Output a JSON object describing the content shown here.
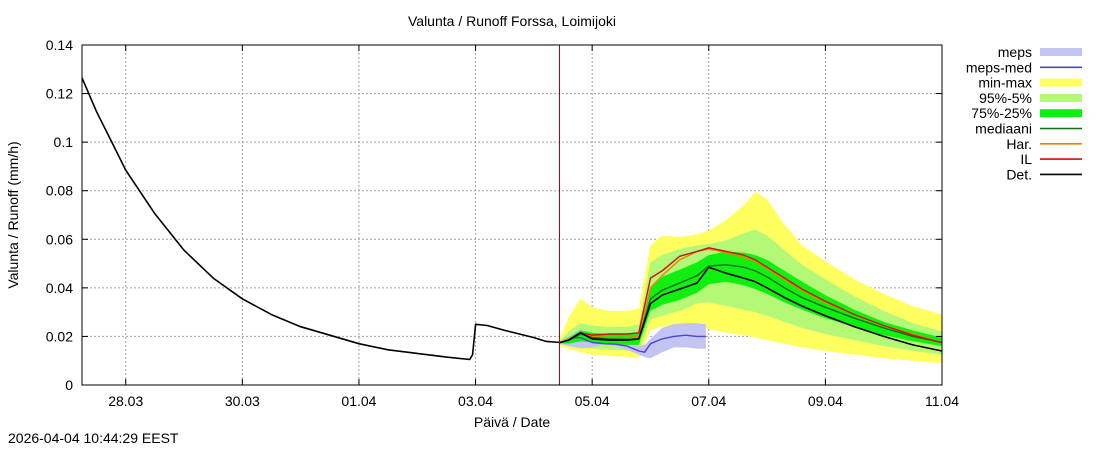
{
  "chart_data": {
    "type": "line",
    "title": "Valunta / Runoff  Forssa, Loimijoki",
    "xlabel": "Päivä / Date",
    "ylabel": "Valunta / Runoff (mm/h)",
    "xunit": "days since 27.03 00:00",
    "xlim": [
      0.25,
      15.0
    ],
    "ylim": [
      0,
      0.14
    ],
    "grid": true,
    "legend_position": "outside-right",
    "now_x": 8.44,
    "xticks": [
      {
        "x": 1,
        "label": "28.03"
      },
      {
        "x": 3,
        "label": "30.03"
      },
      {
        "x": 5,
        "label": "01.04"
      },
      {
        "x": 7,
        "label": "03.04"
      },
      {
        "x": 9,
        "label": "05.04"
      },
      {
        "x": 11,
        "label": "07.04"
      },
      {
        "x": 13,
        "label": "09.04"
      },
      {
        "x": 15,
        "label": "11.04"
      }
    ],
    "yticks": [
      {
        "y": 0,
        "label": "0"
      },
      {
        "y": 0.02,
        "label": "0.02"
      },
      {
        "y": 0.04,
        "label": "0.04"
      },
      {
        "y": 0.06,
        "label": "0.06"
      },
      {
        "y": 0.08,
        "label": "0.08"
      },
      {
        "y": 0.1,
        "label": "0.1"
      },
      {
        "y": 0.12,
        "label": "0.12"
      },
      {
        "y": 0.14,
        "label": "0.14"
      }
    ],
    "series": [
      {
        "name": "meps",
        "kind": "band",
        "color": "#c4c4f4",
        "x": [
          8.45,
          8.6,
          8.8,
          9.0,
          9.2,
          9.4,
          9.6,
          9.8,
          9.9,
          10.0,
          10.2,
          10.4,
          10.6,
          10.8,
          10.95
        ],
        "lower": [
          0.017,
          0.016,
          0.015,
          0.0155,
          0.0165,
          0.016,
          0.0145,
          0.0125,
          0.0115,
          0.011,
          0.0135,
          0.0155,
          0.0155,
          0.015,
          0.015
        ],
        "upper": [
          0.018,
          0.02,
          0.023,
          0.02,
          0.019,
          0.0185,
          0.0175,
          0.016,
          0.0165,
          0.019,
          0.0235,
          0.025,
          0.0255,
          0.0255,
          0.025
        ]
      },
      {
        "name": "meps-med",
        "kind": "line",
        "color": "#4848c8",
        "x": [
          8.45,
          8.7,
          8.8,
          9.0,
          9.2,
          9.4,
          9.6,
          9.8,
          9.9,
          10.0,
          10.2,
          10.4,
          10.6,
          10.8,
          10.95
        ],
        "y": [
          0.0175,
          0.0195,
          0.0195,
          0.0175,
          0.017,
          0.0168,
          0.016,
          0.014,
          0.0135,
          0.017,
          0.019,
          0.02,
          0.0205,
          0.02,
          0.02
        ]
      },
      {
        "name": "min-max",
        "kind": "band",
        "color": "#ffff60",
        "x": [
          8.45,
          8.6,
          8.8,
          9.0,
          9.3,
          9.6,
          9.8,
          10.0,
          10.2,
          10.5,
          10.8,
          11.0,
          11.3,
          11.6,
          11.8,
          12.0,
          12.3,
          12.6,
          13.0,
          13.5,
          14.0,
          14.5,
          15.0
        ],
        "lower": [
          0.016,
          0.015,
          0.0135,
          0.0125,
          0.012,
          0.0115,
          0.011,
          0.0225,
          0.024,
          0.025,
          0.0245,
          0.023,
          0.0215,
          0.0205,
          0.0195,
          0.0185,
          0.017,
          0.0155,
          0.014,
          0.0125,
          0.011,
          0.01,
          0.009
        ],
        "upper": [
          0.019,
          0.028,
          0.0355,
          0.032,
          0.0305,
          0.0305,
          0.0315,
          0.0575,
          0.0615,
          0.061,
          0.062,
          0.0635,
          0.068,
          0.074,
          0.0795,
          0.0765,
          0.066,
          0.0575,
          0.051,
          0.0435,
          0.0375,
          0.0325,
          0.029
        ]
      },
      {
        "name": "95%-5%",
        "kind": "band",
        "color": "#b4f878",
        "x": [
          8.45,
          8.6,
          8.8,
          9.0,
          9.3,
          9.6,
          9.8,
          10.0,
          10.2,
          10.5,
          10.8,
          11.0,
          11.3,
          11.6,
          11.8,
          12.0,
          12.3,
          12.6,
          13.0,
          13.5,
          14.0,
          14.5,
          15.0
        ],
        "lower": [
          0.0168,
          0.016,
          0.0155,
          0.015,
          0.0145,
          0.0142,
          0.014,
          0.027,
          0.0285,
          0.0305,
          0.0335,
          0.034,
          0.0325,
          0.031,
          0.03,
          0.0285,
          0.026,
          0.0235,
          0.021,
          0.0185,
          0.016,
          0.014,
          0.0125
        ],
        "upper": [
          0.0182,
          0.022,
          0.0255,
          0.0245,
          0.024,
          0.024,
          0.025,
          0.0505,
          0.0535,
          0.056,
          0.0575,
          0.058,
          0.0595,
          0.0625,
          0.064,
          0.0615,
          0.0555,
          0.0495,
          0.0435,
          0.0365,
          0.0305,
          0.0255,
          0.022
        ]
      },
      {
        "name": "75%-25%",
        "kind": "band",
        "color": "#10f010",
        "x": [
          8.45,
          8.6,
          8.8,
          9.0,
          9.3,
          9.6,
          9.8,
          10.0,
          10.2,
          10.5,
          10.8,
          11.0,
          11.3,
          11.6,
          11.8,
          12.0,
          12.3,
          12.6,
          13.0,
          13.5,
          14.0,
          14.5,
          15.0
        ],
        "lower": [
          0.0172,
          0.017,
          0.018,
          0.0175,
          0.017,
          0.0165,
          0.0165,
          0.0305,
          0.033,
          0.035,
          0.038,
          0.0415,
          0.0425,
          0.041,
          0.0395,
          0.0375,
          0.034,
          0.031,
          0.0275,
          0.024,
          0.0205,
          0.018,
          0.016
        ],
        "upper": [
          0.0178,
          0.0195,
          0.0225,
          0.0215,
          0.021,
          0.021,
          0.0215,
          0.04,
          0.0445,
          0.0475,
          0.0505,
          0.0535,
          0.055,
          0.0545,
          0.0535,
          0.0515,
          0.047,
          0.0425,
          0.037,
          0.031,
          0.026,
          0.0225,
          0.0195
        ]
      },
      {
        "name": "mediaani",
        "kind": "line",
        "color": "#107010",
        "x": [
          8.45,
          8.6,
          8.8,
          9.0,
          9.3,
          9.6,
          9.8,
          10.0,
          10.2,
          10.5,
          10.8,
          11.0,
          11.3,
          11.6,
          11.8,
          12.0,
          12.3,
          12.6,
          13.0,
          13.5,
          14.0,
          14.5,
          15.0
        ],
        "y": [
          0.0175,
          0.0185,
          0.021,
          0.0195,
          0.019,
          0.0188,
          0.019,
          0.0355,
          0.039,
          0.042,
          0.045,
          0.049,
          0.0495,
          0.0485,
          0.047,
          0.0445,
          0.04,
          0.036,
          0.032,
          0.0275,
          0.0235,
          0.02,
          0.0175
        ]
      },
      {
        "name": "Har.",
        "kind": "line",
        "color": "#f08000",
        "x": [
          8.45,
          8.6,
          8.8,
          9.0,
          9.3,
          9.6,
          9.8,
          10.0,
          10.2,
          10.5,
          10.8,
          11.0,
          11.3,
          11.6,
          11.8,
          12.0,
          12.3,
          12.6,
          13.0,
          13.5,
          14.0,
          14.5,
          15.0
        ],
        "y": [
          0.0175,
          0.019,
          0.0215,
          0.02,
          0.0195,
          0.0195,
          0.02,
          0.04,
          0.045,
          0.0515,
          0.055,
          0.056,
          0.0545,
          0.0525,
          0.051,
          0.048,
          0.0435,
          0.039,
          0.034,
          0.029,
          0.0245,
          0.021,
          0.0175
        ]
      },
      {
        "name": "IL",
        "kind": "line",
        "color": "#d01010",
        "x": [
          8.45,
          8.6,
          8.8,
          9.0,
          9.3,
          9.6,
          9.8,
          10.0,
          10.2,
          10.5,
          10.8,
          11.0,
          11.3,
          11.6,
          11.8,
          12.0,
          12.3,
          12.6,
          13.0,
          13.5,
          14.0,
          14.5,
          15.0
        ],
        "y": [
          0.0175,
          0.0185,
          0.0215,
          0.0205,
          0.021,
          0.021,
          0.0215,
          0.044,
          0.047,
          0.053,
          0.055,
          0.0565,
          0.055,
          0.0535,
          0.0515,
          0.0485,
          0.044,
          0.0395,
          0.0345,
          0.029,
          0.0245,
          0.0205,
          0.0175
        ]
      },
      {
        "name": "Det.",
        "kind": "line",
        "color": "#000000",
        "x": [
          0.25,
          0.5,
          0.75,
          1.0,
          1.5,
          2.0,
          2.5,
          3.0,
          3.5,
          4.0,
          4.5,
          5.0,
          5.5,
          6.0,
          6.5,
          6.9,
          6.95,
          7.0,
          7.2,
          7.5,
          8.0,
          8.2,
          8.45,
          8.6,
          8.8,
          9.0,
          9.3,
          9.6,
          9.8,
          10.0,
          10.2,
          10.5,
          10.8,
          11.0,
          11.3,
          11.6,
          11.8,
          12.0,
          12.3,
          12.6,
          13.0,
          13.5,
          14.0,
          14.5,
          15.0
        ],
        "y": [
          0.1265,
          0.1125,
          0.1005,
          0.0885,
          0.0705,
          0.0555,
          0.044,
          0.0355,
          0.029,
          0.024,
          0.0205,
          0.017,
          0.0145,
          0.013,
          0.0115,
          0.0105,
          0.0125,
          0.025,
          0.0245,
          0.0225,
          0.0195,
          0.018,
          0.0175,
          0.0185,
          0.0215,
          0.019,
          0.0185,
          0.0185,
          0.019,
          0.0335,
          0.037,
          0.0395,
          0.042,
          0.0485,
          0.046,
          0.044,
          0.0425,
          0.04,
          0.036,
          0.0325,
          0.0285,
          0.024,
          0.02,
          0.0165,
          0.014
        ]
      }
    ]
  },
  "legend": {
    "items": [
      {
        "label": "meps",
        "color": "#c4c4f4",
        "kind": "band"
      },
      {
        "label": "meps-med",
        "color": "#4848c8",
        "kind": "line"
      },
      {
        "label": "min-max",
        "color": "#ffff60",
        "kind": "band"
      },
      {
        "label": "95%-5%",
        "color": "#b4f878",
        "kind": "band"
      },
      {
        "label": "75%-25%",
        "color": "#10f010",
        "kind": "band"
      },
      {
        "label": "mediaani",
        "color": "#107010",
        "kind": "line"
      },
      {
        "label": "Har.",
        "color": "#f08000",
        "kind": "line"
      },
      {
        "label": "IL",
        "color": "#d01010",
        "kind": "line"
      },
      {
        "label": "Det.",
        "color": "#000000",
        "kind": "line"
      }
    ]
  },
  "footer": {
    "timestamp": "2026-04-04 10:44:29 EEST"
  }
}
